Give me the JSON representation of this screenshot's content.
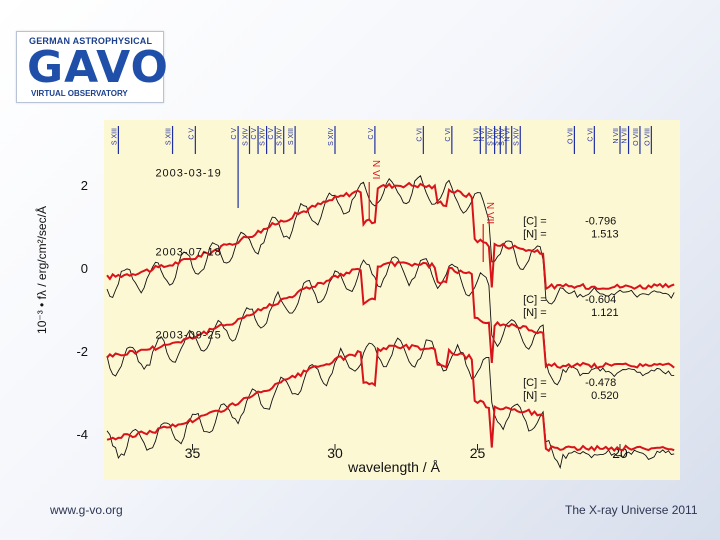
{
  "logo": {
    "top": "GERMAN ASTROPHYSICAL",
    "big": "GAVO",
    "bottom": "VIRTUAL OBSERVATORY"
  },
  "footer": {
    "left": "www.g-vo.org",
    "right": "The X-ray Universe 2011"
  },
  "colors": {
    "model": "#d8141a",
    "observed": "#111111",
    "background": "#fdf8d4",
    "markers": "#1f2fa0"
  },
  "chart_data": {
    "type": "line",
    "xlabel": "wavelength / Å",
    "ylabel": "10⁻³ • fλ / erg/cm²/sec/Å",
    "xlim": [
      38,
      18
    ],
    "ylim": [
      -4,
      3
    ],
    "xticks": [
      35,
      30,
      25,
      20
    ],
    "yticks": [
      2,
      0,
      -2,
      -4
    ],
    "line_markers": [
      {
        "label": "S XIII",
        "x": 37.6
      },
      {
        "label": "S XIII",
        "x": 35.7
      },
      {
        "label": "C V",
        "x": 34.9
      },
      {
        "label": "C V",
        "x": 33.4
      },
      {
        "label": "S XIV",
        "x": 33.0
      },
      {
        "label": "C V",
        "x": 32.7
      },
      {
        "label": "S XIV",
        "x": 32.4
      },
      {
        "label": "C V",
        "x": 32.1
      },
      {
        "label": "S XIV",
        "x": 31.8
      },
      {
        "label": "S XIII",
        "x": 31.4
      },
      {
        "label": "S XIV",
        "x": 30.0
      },
      {
        "label": "C V",
        "x": 28.6
      },
      {
        "label": "C VI",
        "x": 26.9
      },
      {
        "label": "C VI",
        "x": 25.9
      },
      {
        "label": "N VI",
        "x": 24.9
      },
      {
        "label": "N VI",
        "x": 24.7
      },
      {
        "label": "S XIV",
        "x": 24.4
      },
      {
        "label": "S XIV",
        "x": 24.2
      },
      {
        "label": "S XIV",
        "x": 24.0
      },
      {
        "label": "N VI",
        "x": 23.8
      },
      {
        "label": "S XIV",
        "x": 23.5
      },
      {
        "label": "O VII",
        "x": 21.6
      },
      {
        "label": "C VI",
        "x": 20.9
      },
      {
        "label": "N VII",
        "x": 20.0
      },
      {
        "label": "N VII",
        "x": 19.7
      },
      {
        "label": "O VIII",
        "x": 19.3
      },
      {
        "label": "O VIII",
        "x": 18.9
      }
    ],
    "inline_labels": [
      {
        "label": "N VI",
        "x": 28.8
      },
      {
        "label": "N VII",
        "x": 24.8
      }
    ],
    "epochs": [
      {
        "date": "2003-03-19",
        "offset": 0.6,
        "C": "-0.796",
        "N": "1.513"
      },
      {
        "date": "2003-07-18",
        "offset": -1.3,
        "C": "-0.604",
        "N": "1.121"
      },
      {
        "date": "2003-09-25",
        "offset": -3.3,
        "C": "-0.478",
        "N": "0.520"
      }
    ],
    "abundance_labels": {
      "C": "[C]",
      "N": "[N]",
      "eq_main": "=",
      "eq_alt": "="
    }
  }
}
